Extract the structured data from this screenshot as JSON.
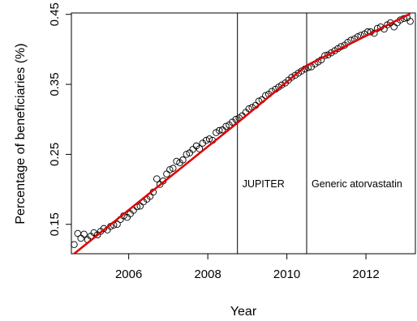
{
  "chart_data": {
    "type": "scatter",
    "title": "",
    "xlabel": "Year",
    "ylabel": "Percentage of beneficiaries (%)",
    "xlim": [
      2004.55,
      2013.25
    ],
    "ylim": [
      0.108,
      0.452
    ],
    "x_ticks": [
      2006,
      2008,
      2010,
      2012
    ],
    "x_tick_labels": [
      "2006",
      "2008",
      "2010",
      "2012"
    ],
    "y_ticks": [
      0.15,
      0.25,
      0.35,
      0.45
    ],
    "y_tick_labels": [
      "0.15",
      "0.25",
      "0.35",
      "0.45"
    ],
    "grid": false,
    "legend": "none",
    "marker": "open-circle",
    "colors": {
      "points": "#000000",
      "fit_line": "#e00000",
      "vlines": "#000000"
    },
    "series": [
      {
        "role": "observed-points",
        "x": [
          2004.62,
          2004.71,
          2004.79,
          2004.87,
          2004.96,
          2005.04,
          2005.12,
          2005.21,
          2005.29,
          2005.37,
          2005.46,
          2005.54,
          2005.62,
          2005.71,
          2005.79,
          2005.87,
          2005.96,
          2006.04,
          2006.12,
          2006.21,
          2006.29,
          2006.37,
          2006.46,
          2006.54,
          2006.62,
          2006.71,
          2006.79,
          2006.87,
          2006.96,
          2007.04,
          2007.12,
          2007.21,
          2007.29,
          2007.37,
          2007.46,
          2007.54,
          2007.62,
          2007.71,
          2007.79,
          2007.87,
          2007.96,
          2008.04,
          2008.12,
          2008.21,
          2008.29,
          2008.37,
          2008.46,
          2008.54,
          2008.62,
          2008.71,
          2008.79,
          2008.87,
          2008.96,
          2009.04,
          2009.12,
          2009.21,
          2009.29,
          2009.37,
          2009.46,
          2009.54,
          2009.62,
          2009.71,
          2009.79,
          2009.87,
          2009.96,
          2010.04,
          2010.12,
          2010.21,
          2010.29,
          2010.37,
          2010.46,
          2010.54,
          2010.62,
          2010.71,
          2010.79,
          2010.87,
          2010.96,
          2011.04,
          2011.12,
          2011.21,
          2011.29,
          2011.37,
          2011.46,
          2011.54,
          2011.62,
          2011.71,
          2011.79,
          2011.87,
          2011.96,
          2012.04,
          2012.12,
          2012.21,
          2012.29,
          2012.37,
          2012.46,
          2012.54,
          2012.62,
          2012.71,
          2012.79,
          2012.87,
          2012.96,
          2013.04,
          2013.12
        ],
        "y": [
          0.121,
          0.137,
          0.13,
          0.136,
          0.128,
          0.133,
          0.138,
          0.135,
          0.14,
          0.144,
          0.142,
          0.147,
          0.149,
          0.15,
          0.157,
          0.162,
          0.16,
          0.165,
          0.17,
          0.175,
          0.176,
          0.182,
          0.186,
          0.19,
          0.196,
          0.215,
          0.207,
          0.212,
          0.222,
          0.228,
          0.23,
          0.24,
          0.238,
          0.242,
          0.25,
          0.252,
          0.257,
          0.262,
          0.258,
          0.266,
          0.27,
          0.272,
          0.27,
          0.281,
          0.284,
          0.285,
          0.29,
          0.292,
          0.296,
          0.3,
          0.302,
          0.305,
          0.31,
          0.315,
          0.317,
          0.32,
          0.326,
          0.328,
          0.334,
          0.336,
          0.34,
          0.343,
          0.346,
          0.349,
          0.352,
          0.356,
          0.36,
          0.363,
          0.366,
          0.369,
          0.372,
          0.374,
          0.375,
          0.379,
          0.382,
          0.385,
          0.391,
          0.392,
          0.395,
          0.398,
          0.401,
          0.404,
          0.406,
          0.41,
          0.413,
          0.415,
          0.418,
          0.42,
          0.422,
          0.425,
          0.425,
          0.423,
          0.43,
          0.432,
          0.429,
          0.435,
          0.438,
          0.432,
          0.438,
          0.442,
          0.444,
          0.445,
          0.44
        ]
      },
      {
        "role": "segmented-regression-fit",
        "x": [
          2004.62,
          2008.75,
          2010.5,
          2013.12
        ],
        "y": [
          0.108,
          0.295,
          0.377,
          0.451
        ]
      }
    ],
    "vertical_lines": [
      {
        "x": 2008.75,
        "label": "JUPITER"
      },
      {
        "x": 2010.5,
        "label": "Generic atorvastatin"
      }
    ]
  }
}
